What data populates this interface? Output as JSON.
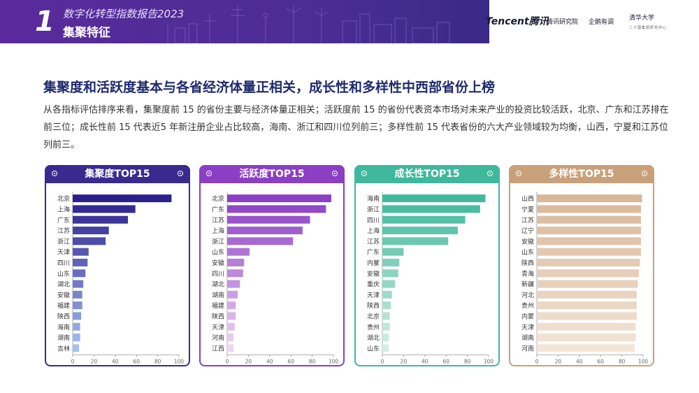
{
  "header": {
    "section_number": "1",
    "report_title": "数字化转型指数报告2023",
    "section_title": "集聚特征",
    "logo_tencent": "Tencent腾讯",
    "logo_research": "腾讯研究院",
    "logo_qipeng": "企鹅有调",
    "logo_tsinghua": "清华大学",
    "logo_tsinghua_sub": "二十国集团研究中心"
  },
  "main_title": "集聚度和活跃度基本与各省经济体量正相关，成长性和多样性中西部省份上榜",
  "description": "从各指标评估排序来看，集聚度前 15 的省份主要与经济体量正相关；活跃度前 15 的省份代表资本市场对未来产业的投资比较活跃，北京、广东和江苏排在前三位；成长性前 15 代表近5 年新注册企业占比较高，海南、浙江和四川位列前三；多样性前 15 代表省份的六大产业领域较为均衡，山西，宁夏和江苏位列前三。",
  "colors": {
    "jiju": "#3a2a8e",
    "huoyue": "#8a3fc4",
    "chengzhang": "#3fb89c",
    "duoyang": "#c8a07a"
  },
  "chart_data": [
    {
      "type": "bar",
      "title": "集聚度TOP15",
      "orientation": "horizontal",
      "categories": [
        "北京",
        "上海",
        "广东",
        "江苏",
        "浙江",
        "天津",
        "四川",
        "山东",
        "湖北",
        "安徽",
        "福建",
        "陕西",
        "海南",
        "湖南",
        "吉林"
      ],
      "values": [
        93,
        59,
        52,
        34,
        31,
        15,
        14,
        12,
        10,
        9,
        9,
        8,
        7,
        7,
        6
      ],
      "xlim": [
        0,
        100
      ],
      "xticks": [
        0,
        20,
        40,
        60,
        80,
        100
      ],
      "color_start": "#2b1f8c",
      "color_end": "#a3bff0"
    },
    {
      "type": "bar",
      "title": "活跃度TOP15",
      "orientation": "horizontal",
      "categories": [
        "北京",
        "广东",
        "江苏",
        "上海",
        "浙江",
        "山东",
        "安徽",
        "四川",
        "湖北",
        "湖南",
        "福建",
        "陕西",
        "天津",
        "河南",
        "江西"
      ],
      "values": [
        98,
        93,
        78,
        71,
        62,
        21,
        16,
        15,
        12,
        10,
        8,
        8,
        7,
        6,
        6
      ],
      "xlim": [
        0,
        100
      ],
      "xticks": [
        0,
        20,
        40,
        60,
        80,
        100
      ],
      "color_start": "#8a3fc4",
      "color_end": "#f0d4f4"
    },
    {
      "type": "bar",
      "title": "成长性TOP15",
      "orientation": "horizontal",
      "categories": [
        "海南",
        "浙江",
        "四川",
        "上海",
        "江苏",
        "广东",
        "内蒙",
        "安徽",
        "重庆",
        "天津",
        "陕西",
        "北京",
        "贵州",
        "湖北",
        "山东"
      ],
      "values": [
        97,
        92,
        78,
        71,
        62,
        20,
        16,
        15,
        12,
        9,
        8,
        7,
        7,
        6,
        6
      ],
      "xlim": [
        0,
        100
      ],
      "xticks": [
        0,
        20,
        40,
        60,
        80,
        100
      ],
      "color_start": "#3fb89c",
      "color_end": "#d4efe6"
    },
    {
      "type": "bar",
      "title": "多样性TOP15",
      "orientation": "horizontal",
      "categories": [
        "山西",
        "宁夏",
        "江苏",
        "辽宁",
        "安徽",
        "山东",
        "陕西",
        "青海",
        "新疆",
        "河北",
        "贵州",
        "内蒙",
        "天津",
        "湖南",
        "河南"
      ],
      "values": [
        99,
        98,
        98,
        98,
        98,
        98,
        97,
        96,
        95,
        94,
        94,
        94,
        93,
        93,
        92
      ],
      "xlim": [
        0,
        100
      ],
      "xticks": [
        0,
        20,
        40,
        60,
        80,
        100
      ],
      "color_start": "#d9b89a",
      "color_end": "#f3e4d6"
    }
  ]
}
